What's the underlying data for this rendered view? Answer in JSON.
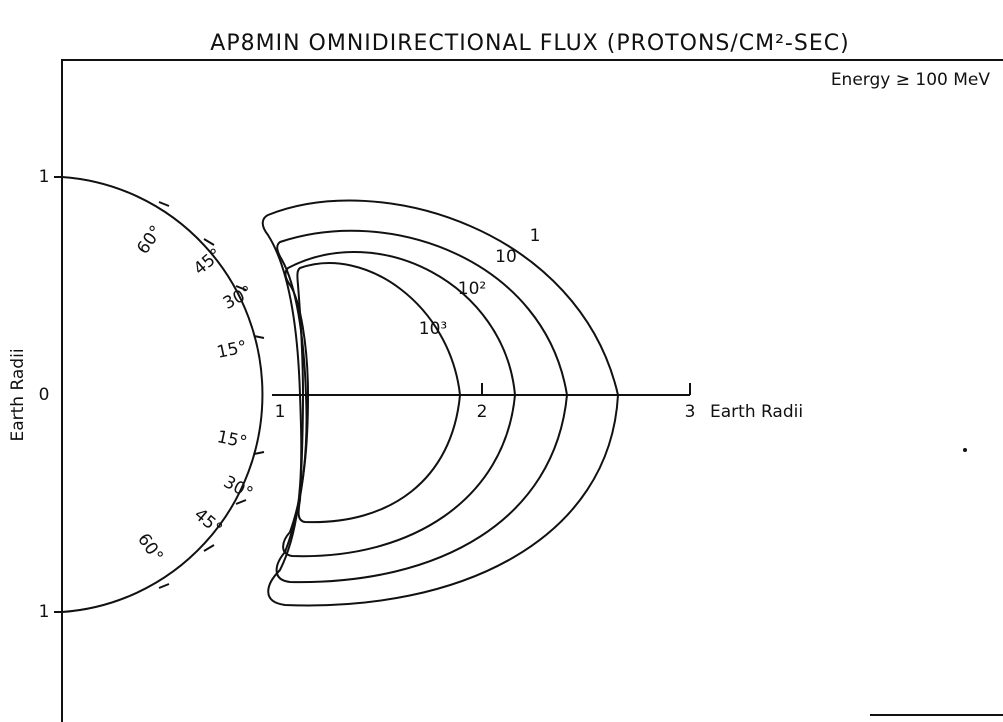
{
  "title": "AP8MIN OMNIDIRECTIONAL FLUX (PROTONS/CM²-SEC)",
  "annotation": "Energy ≥ 100 MeV",
  "y_axis": {
    "label": "Earth Radii",
    "ticks": [
      "1",
      "0",
      "1"
    ]
  },
  "x_axis": {
    "label": "Earth Radii",
    "ticks": [
      "1",
      "2",
      "3"
    ]
  },
  "latitudes_upper": [
    "60°",
    "45°",
    "30°",
    "15°"
  ],
  "latitudes_lower": [
    "15°",
    "30°",
    "45°",
    "60°"
  ],
  "contours": [
    "1",
    "10",
    "10²",
    "10³"
  ]
}
